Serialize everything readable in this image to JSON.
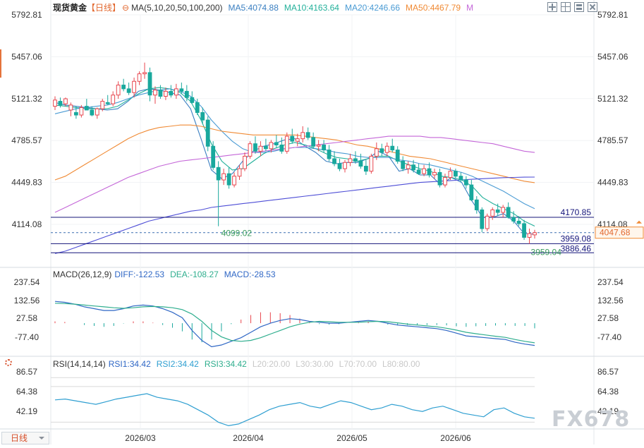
{
  "header": {
    "symbol": "现货黄金",
    "period_tag": "【日线】",
    "ma_label": "MA(5,10,20,50,100,200)",
    "ma5": "MA5:4074.88",
    "ma10": "MA10:4163.64",
    "ma20": "MA20:4246.66",
    "ma50": "MA50:4467.79",
    "ma_more": "M"
  },
  "toolbar": {
    "icons": [
      "expand-icon",
      "grid-icon",
      "layout-icon",
      "close-icon"
    ]
  },
  "price_axis": {
    "ticks": [
      "5792.81",
      "5457.06",
      "5121.32",
      "4785.57",
      "4449.83",
      "4114.08"
    ]
  },
  "price_labels": {
    "resistance": "4170.85",
    "last": "4047.68",
    "line_3959": "3959.08",
    "support": "3886.46",
    "low_marker": "4099.02",
    "low2_marker": "3959.04"
  },
  "macd": {
    "label": "MACD(26,12,9)",
    "diff": "DIFF:-122.53",
    "dea": "DEA:-108.27",
    "macd": "MACD:-28.53",
    "ticks": [
      "237.54",
      "132.56",
      "27.58",
      "-77.40"
    ]
  },
  "rsi": {
    "label": "RSI(14,14,14)",
    "rsi1": "RSI1:34.42",
    "rsi2": "RSI2:34.42",
    "rsi3": "RSI3:34.42",
    "l20": "L20:20.00",
    "l30": "L30:30.00",
    "l70": "L70:70.00",
    "l80": "L80:80.00",
    "ticks": [
      "86.57",
      "64.38",
      "42.19"
    ]
  },
  "dates": [
    "2026/03",
    "2026/04",
    "2026/05",
    "2026/06"
  ],
  "timeframe": {
    "label": "日线"
  },
  "watermark": "FX678",
  "colors": {
    "up": "#e8464e",
    "down": "#19a89d",
    "ma5": "#3a7fc1",
    "ma10": "#22b09a",
    "ma20": "#4a9bd4",
    "ma50": "#f08a34",
    "ma100": "#c466d8",
    "ma200": "#4d4dd6",
    "diff": "#2f67c5",
    "dea": "#2fae8e",
    "hline": "#14147a"
  },
  "chart_data": [
    {
      "type": "candlestick",
      "title": "现货黄金 日线",
      "x_months": [
        "2026/03",
        "2026/04",
        "2026/05",
        "2026/06"
      ],
      "ylim": [
        3860,
        5830
      ],
      "candles": [
        {
          "o": 5060,
          "h": 5140,
          "l": 5030,
          "c": 5110
        },
        {
          "o": 5100,
          "h": 5130,
          "l": 5050,
          "c": 5070
        },
        {
          "o": 5080,
          "h": 5130,
          "l": 5060,
          "c": 5120
        },
        {
          "o": 5030,
          "h": 5090,
          "l": 4980,
          "c": 5070
        },
        {
          "o": 5010,
          "h": 5060,
          "l": 4960,
          "c": 4990
        },
        {
          "o": 4990,
          "h": 5070,
          "l": 4970,
          "c": 5050
        },
        {
          "o": 5060,
          "h": 5120,
          "l": 5030,
          "c": 5030
        },
        {
          "o": 5030,
          "h": 5060,
          "l": 4980,
          "c": 4990
        },
        {
          "o": 4990,
          "h": 5050,
          "l": 4960,
          "c": 5040
        },
        {
          "o": 5040,
          "h": 5120,
          "l": 5020,
          "c": 5100
        },
        {
          "o": 5090,
          "h": 5150,
          "l": 5070,
          "c": 5080
        },
        {
          "o": 5080,
          "h": 5180,
          "l": 5060,
          "c": 5150
        },
        {
          "o": 5150,
          "h": 5260,
          "l": 5120,
          "c": 5230
        },
        {
          "o": 5230,
          "h": 5280,
          "l": 5180,
          "c": 5200
        },
        {
          "o": 5200,
          "h": 5250,
          "l": 5150,
          "c": 5170
        },
        {
          "o": 5170,
          "h": 5290,
          "l": 5130,
          "c": 5260
        },
        {
          "o": 5260,
          "h": 5340,
          "l": 5230,
          "c": 5320
        },
        {
          "o": 5320,
          "h": 5410,
          "l": 5280,
          "c": 5330
        },
        {
          "o": 5330,
          "h": 5370,
          "l": 5100,
          "c": 5150
        },
        {
          "o": 5150,
          "h": 5220,
          "l": 5080,
          "c": 5190
        },
        {
          "o": 5190,
          "h": 5230,
          "l": 5120,
          "c": 5140
        },
        {
          "o": 5140,
          "h": 5210,
          "l": 5110,
          "c": 5180
        },
        {
          "o": 5180,
          "h": 5230,
          "l": 5130,
          "c": 5150
        },
        {
          "o": 5150,
          "h": 5240,
          "l": 5120,
          "c": 5200
        },
        {
          "o": 5200,
          "h": 5250,
          "l": 5160,
          "c": 5180
        },
        {
          "o": 5180,
          "h": 5230,
          "l": 5100,
          "c": 5130
        },
        {
          "o": 5130,
          "h": 5180,
          "l": 5080,
          "c": 5090
        },
        {
          "o": 5090,
          "h": 5120,
          "l": 4990,
          "c": 5010
        },
        {
          "o": 5010,
          "h": 5050,
          "l": 4920,
          "c": 4950
        },
        {
          "o": 4950,
          "h": 4980,
          "l": 4700,
          "c": 4740
        },
        {
          "o": 4740,
          "h": 4780,
          "l": 4550,
          "c": 4570
        },
        {
          "o": 4570,
          "h": 4620,
          "l": 4099,
          "c": 4470
        },
        {
          "o": 4470,
          "h": 4560,
          "l": 4430,
          "c": 4520
        },
        {
          "o": 4520,
          "h": 4570,
          "l": 4400,
          "c": 4430
        },
        {
          "o": 4430,
          "h": 4530,
          "l": 4410,
          "c": 4500
        },
        {
          "o": 4500,
          "h": 4590,
          "l": 4470,
          "c": 4560
        },
        {
          "o": 4560,
          "h": 4690,
          "l": 4540,
          "c": 4660
        },
        {
          "o": 4660,
          "h": 4780,
          "l": 4640,
          "c": 4760
        },
        {
          "o": 4760,
          "h": 4820,
          "l": 4680,
          "c": 4700
        },
        {
          "o": 4700,
          "h": 4780,
          "l": 4660,
          "c": 4740
        },
        {
          "o": 4740,
          "h": 4800,
          "l": 4700,
          "c": 4720
        },
        {
          "o": 4720,
          "h": 4790,
          "l": 4690,
          "c": 4770
        },
        {
          "o": 4770,
          "h": 4830,
          "l": 4730,
          "c": 4750
        },
        {
          "o": 4750,
          "h": 4810,
          "l": 4680,
          "c": 4700
        },
        {
          "o": 4700,
          "h": 4850,
          "l": 4680,
          "c": 4820
        },
        {
          "o": 4820,
          "h": 4880,
          "l": 4760,
          "c": 4780
        },
        {
          "o": 4780,
          "h": 4840,
          "l": 4740,
          "c": 4800
        },
        {
          "o": 4800,
          "h": 4900,
          "l": 4770,
          "c": 4850
        },
        {
          "o": 4850,
          "h": 4890,
          "l": 4790,
          "c": 4810
        },
        {
          "o": 4810,
          "h": 4850,
          "l": 4720,
          "c": 4740
        },
        {
          "o": 4740,
          "h": 4790,
          "l": 4700,
          "c": 4750
        },
        {
          "o": 4750,
          "h": 4790,
          "l": 4690,
          "c": 4710
        },
        {
          "o": 4710,
          "h": 4750,
          "l": 4620,
          "c": 4640
        },
        {
          "o": 4640,
          "h": 4700,
          "l": 4580,
          "c": 4600
        },
        {
          "o": 4600,
          "h": 4640,
          "l": 4540,
          "c": 4560
        },
        {
          "o": 4560,
          "h": 4630,
          "l": 4530,
          "c": 4610
        },
        {
          "o": 4610,
          "h": 4680,
          "l": 4580,
          "c": 4640
        },
        {
          "o": 4640,
          "h": 4700,
          "l": 4600,
          "c": 4620
        },
        {
          "o": 4620,
          "h": 4680,
          "l": 4560,
          "c": 4580
        },
        {
          "o": 4580,
          "h": 4630,
          "l": 4510,
          "c": 4540
        },
        {
          "o": 4540,
          "h": 4680,
          "l": 4520,
          "c": 4660
        },
        {
          "o": 4660,
          "h": 4770,
          "l": 4630,
          "c": 4720
        },
        {
          "o": 4720,
          "h": 4760,
          "l": 4660,
          "c": 4690
        },
        {
          "o": 4690,
          "h": 4770,
          "l": 4660,
          "c": 4740
        },
        {
          "o": 4740,
          "h": 4800,
          "l": 4690,
          "c": 4710
        },
        {
          "o": 4710,
          "h": 4740,
          "l": 4600,
          "c": 4620
        },
        {
          "o": 4620,
          "h": 4660,
          "l": 4540,
          "c": 4560
        },
        {
          "o": 4560,
          "h": 4620,
          "l": 4520,
          "c": 4590
        },
        {
          "o": 4590,
          "h": 4630,
          "l": 4530,
          "c": 4550
        },
        {
          "o": 4550,
          "h": 4600,
          "l": 4510,
          "c": 4520
        },
        {
          "o": 4520,
          "h": 4590,
          "l": 4500,
          "c": 4560
        },
        {
          "o": 4560,
          "h": 4610,
          "l": 4490,
          "c": 4510
        },
        {
          "o": 4510,
          "h": 4560,
          "l": 4480,
          "c": 4530
        },
        {
          "o": 4530,
          "h": 4560,
          "l": 4410,
          "c": 4430
        },
        {
          "o": 4430,
          "h": 4520,
          "l": 4410,
          "c": 4490
        },
        {
          "o": 4490,
          "h": 4570,
          "l": 4470,
          "c": 4540
        },
        {
          "o": 4540,
          "h": 4560,
          "l": 4480,
          "c": 4500
        },
        {
          "o": 4500,
          "h": 4530,
          "l": 4450,
          "c": 4470
        },
        {
          "o": 4470,
          "h": 4500,
          "l": 4400,
          "c": 4430
        },
        {
          "o": 4430,
          "h": 4470,
          "l": 4300,
          "c": 4310
        },
        {
          "o": 4310,
          "h": 4340,
          "l": 4200,
          "c": 4230
        },
        {
          "o": 4230,
          "h": 4250,
          "l": 4050,
          "c": 4080
        },
        {
          "o": 4080,
          "h": 4200,
          "l": 4060,
          "c": 4180
        },
        {
          "o": 4180,
          "h": 4250,
          "l": 4150,
          "c": 4230
        },
        {
          "o": 4230,
          "h": 4280,
          "l": 4180,
          "c": 4210
        },
        {
          "o": 4210,
          "h": 4270,
          "l": 4170,
          "c": 4250
        },
        {
          "o": 4250,
          "h": 4290,
          "l": 4160,
          "c": 4170
        },
        {
          "o": 4170,
          "h": 4220,
          "l": 4120,
          "c": 4140
        },
        {
          "o": 4140,
          "h": 4180,
          "l": 4100,
          "c": 4120
        },
        {
          "o": 4120,
          "h": 4150,
          "l": 3990,
          "c": 4010
        },
        {
          "o": 4010,
          "h": 4080,
          "l": 3959,
          "c": 4040
        },
        {
          "o": 4030,
          "h": 4070,
          "l": 4000,
          "c": 4047.68
        }
      ],
      "moving_averages": {
        "MA5": [
          5090,
          5070,
          5060,
          5050,
          5040,
          5030,
          5040,
          5100,
          5180,
          5200,
          5190,
          5170,
          5150,
          5040,
          4800,
          4550,
          4480,
          4520,
          4620,
          4700,
          4740,
          4760,
          4790,
          4800,
          4740,
          4690,
          4620,
          4600,
          4610,
          4610,
          4640,
          4700,
          4660,
          4540,
          4560,
          4510,
          4510,
          4430,
          4490,
          4450,
          4300,
          4170,
          4170,
          4200,
          4140,
          4040,
          4035
        ],
        "MA10": [
          5070,
          5060,
          5050,
          5040,
          5040,
          5040,
          5060,
          5110,
          5160,
          5200,
          5210,
          5200,
          5170,
          5100,
          4950,
          4760,
          4620,
          4550,
          4560,
          4620,
          4680,
          4720,
          4750,
          4770,
          4750,
          4720,
          4680,
          4650,
          4640,
          4620,
          4640,
          4660,
          4660,
          4620,
          4590,
          4560,
          4540,
          4500,
          4490,
          4470,
          4420,
          4330,
          4280,
          4240,
          4200,
          4140,
          4100
        ],
        "MA20": [
          5000,
          5020,
          5040,
          5050,
          5060,
          5070,
          5090,
          5120,
          5150,
          5170,
          5190,
          5200,
          5180,
          5140,
          5060,
          4950,
          4860,
          4780,
          4720,
          4690,
          4690,
          4700,
          4720,
          4730,
          4730,
          4720,
          4710,
          4690,
          4680,
          4660,
          4650,
          4650,
          4650,
          4630,
          4620,
          4600,
          4590,
          4570,
          4550,
          4530,
          4500,
          4460,
          4420,
          4380,
          4330,
          4280,
          4240
        ],
        "MA50": [
          4470,
          4500,
          4550,
          4600,
          4650,
          4700,
          4750,
          4800,
          4840,
          4870,
          4890,
          4900,
          4910,
          4910,
          4900,
          4880,
          4860,
          4850,
          4840,
          4830,
          4830,
          4830,
          4830,
          4830,
          4820,
          4810,
          4800,
          4790,
          4770,
          4750,
          4740,
          4720,
          4700,
          4680,
          4660,
          4650,
          4640,
          4620,
          4600,
          4580,
          4560,
          4540,
          4520,
          4500,
          4480,
          4460,
          4448
        ],
        "MA100": [
          4210,
          4250,
          4290,
          4330,
          4370,
          4410,
          4450,
          4490,
          4520,
          4550,
          4580,
          4600,
          4620,
          4630,
          4640,
          4650,
          4660,
          4670,
          4680,
          4690,
          4700,
          4710,
          4720,
          4730,
          4740,
          4750,
          4760,
          4770,
          4780,
          4790,
          4800,
          4810,
          4820,
          4820,
          4820,
          4820,
          4810,
          4810,
          4800,
          4790,
          4780,
          4770,
          4760,
          4740,
          4720,
          4700,
          4690
        ],
        "MA200": [
          3880,
          3900,
          3930,
          3960,
          3990,
          4020,
          4050,
          4080,
          4110,
          4140,
          4160,
          4180,
          4200,
          4220,
          4230,
          4250,
          4260,
          4270,
          4280,
          4290,
          4300,
          4310,
          4320,
          4330,
          4340,
          4350,
          4360,
          4370,
          4380,
          4390,
          4400,
          4410,
          4420,
          4430,
          4440,
          4450,
          4455,
          4460,
          4465,
          4470,
          4475,
          4480,
          4484,
          4488,
          4490,
          4492,
          4493
        ]
      },
      "horizontal_lines": [
        4170.85,
        4099.02,
        4047.68,
        3959.08,
        3886.46
      ]
    },
    {
      "type": "bar",
      "title": "MACD(26,12,9)",
      "ylim": [
        -130,
        290
      ],
      "DIFF": [
        120,
        115,
        105,
        90,
        80,
        70,
        70,
        80,
        95,
        100,
        95,
        80,
        60,
        30,
        -40,
        -95,
        -130,
        -120,
        -100,
        -80,
        -50,
        -20,
        0,
        15,
        25,
        20,
        10,
        5,
        0,
        0,
        5,
        10,
        15,
        10,
        0,
        -10,
        -15,
        -20,
        -25,
        -30,
        -40,
        -55,
        -70,
        -75,
        -80,
        -85,
        -90,
        -105,
        -115,
        -122.53
      ],
      "DEA": [
        110,
        108,
        105,
        100,
        95,
        90,
        85,
        82,
        85,
        90,
        92,
        90,
        85,
        75,
        50,
        10,
        -40,
        -75,
        -95,
        -100,
        -95,
        -80,
        -60,
        -40,
        -20,
        -5,
        5,
        10,
        8,
        5,
        5,
        5,
        8,
        10,
        8,
        2,
        -5,
        -10,
        -15,
        -20,
        -28,
        -38,
        -50,
        -58,
        -65,
        -72,
        -78,
        -90,
        -100,
        -108.27
      ],
      "MACD": [
        10,
        7,
        0,
        -10,
        -15,
        -20,
        -15,
        -2,
        10,
        10,
        3,
        -10,
        -25,
        -45,
        -90,
        -105,
        -90,
        -45,
        -5,
        20,
        45,
        60,
        60,
        55,
        45,
        25,
        5,
        -5,
        -8,
        -5,
        0,
        5,
        7,
        0,
        -8,
        -12,
        -10,
        -10,
        -10,
        -10,
        -12,
        -17,
        -20,
        -17,
        -15,
        -13,
        -12,
        -15,
        -15,
        -28.53
      ]
    },
    {
      "type": "line",
      "title": "RSI(14,14,14)",
      "ylim": [
        20,
        90
      ],
      "RSI": [
        55,
        56,
        54,
        52,
        50,
        53,
        56,
        58,
        60,
        62,
        58,
        56,
        54,
        50,
        44,
        38,
        30,
        26,
        28,
        33,
        38,
        44,
        48,
        50,
        52,
        48,
        46,
        50,
        54,
        52,
        48,
        44,
        46,
        50,
        48,
        44,
        42,
        46,
        48,
        44,
        40,
        38,
        36,
        44,
        46,
        40,
        36,
        34.42
      ]
    }
  ]
}
